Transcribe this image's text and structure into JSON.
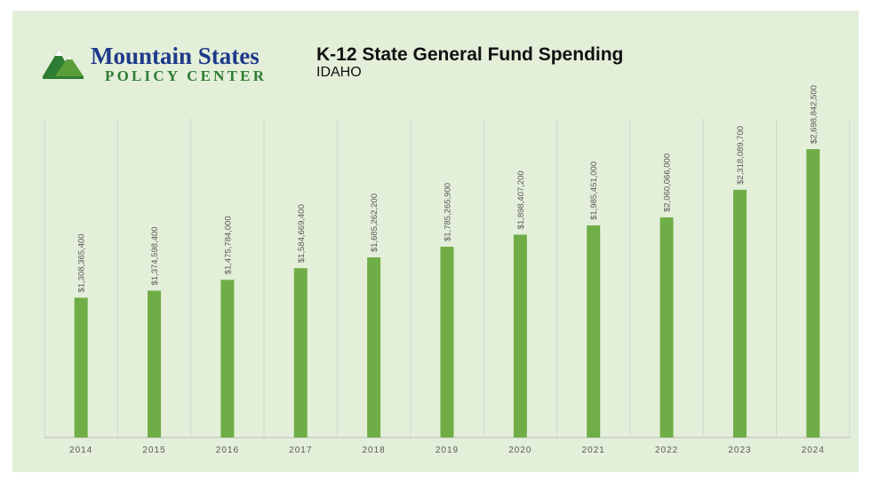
{
  "logo": {
    "line1": "Mountain States",
    "line2": "POLICY CENTER"
  },
  "colors": {
    "background": "#e3efd9",
    "bar": "#70ad47",
    "gridline": "#d0dccb",
    "axis": "#bfbfbf",
    "label_text": "#595959"
  },
  "chart_data": {
    "type": "bar",
    "title": "K-12 State General Fund Spending",
    "subtitle": "IDAHO",
    "categories": [
      "2014",
      "2015",
      "2016",
      "2017",
      "2018",
      "2019",
      "2020",
      "2021",
      "2022",
      "2023",
      "2024"
    ],
    "values": [
      1308365400,
      1374598400,
      1475784000,
      1584669400,
      1685262200,
      1785265900,
      1898407200,
      1985451000,
      2060066000,
      2318089700,
      2698842500
    ],
    "data_labels": [
      "$1,308,365,400",
      "$1,374,598,400",
      "$1,475,784,000",
      "$1,584,669,400",
      "$1,685,262,200",
      "$1,785,265,900",
      "$1,898,407,200",
      "$1,985,451,000",
      "$2,060,066,000",
      "$2,318,089,700",
      "$2,698,842,500"
    ],
    "xlabel": "",
    "ylabel": "",
    "ylim": [
      0,
      3000000000
    ],
    "grid": "vertical category separators",
    "legend": "none"
  }
}
